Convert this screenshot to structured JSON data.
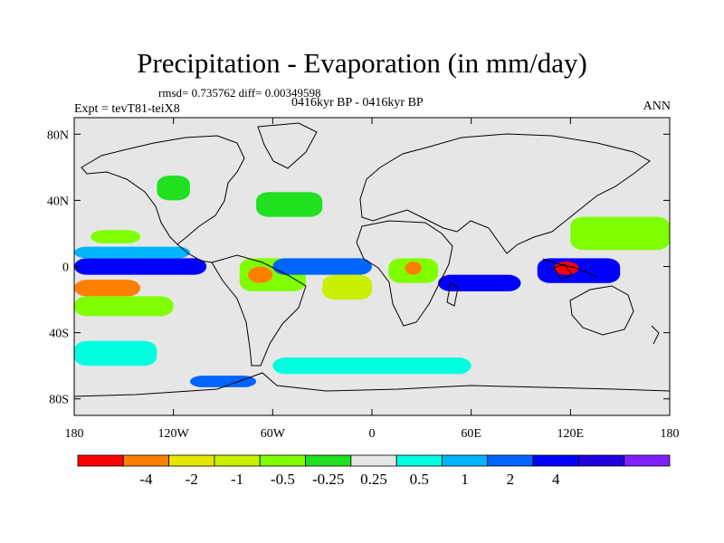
{
  "header": {
    "title": "Precipitation - Evaporation (in mm/day)",
    "stats": "rmsd= 0.735762 diff= 0.00349598",
    "period": "0416kyr BP - 0416kyr BP",
    "experiment": "Expt = tevT81-teiX8",
    "season": "ANN"
  },
  "chart_data": {
    "type": "heatmap",
    "title": "Precipitation - Evaporation (in mm/day)",
    "subtitle": "0416kyr BP - 0416kyr BP",
    "x_ticks": [
      {
        "value": -180,
        "label": "180"
      },
      {
        "value": -120,
        "label": "120W"
      },
      {
        "value": -60,
        "label": "60W"
      },
      {
        "value": 0,
        "label": "0"
      },
      {
        "value": 60,
        "label": "60E"
      },
      {
        "value": 120,
        "label": "120E"
      },
      {
        "value": 180,
        "label": "180"
      }
    ],
    "y_ticks": [
      {
        "value": 80,
        "label": "80N"
      },
      {
        "value": 40,
        "label": "40N"
      },
      {
        "value": 0,
        "label": "0"
      },
      {
        "value": -40,
        "label": "40S"
      },
      {
        "value": -80,
        "label": "80S"
      }
    ],
    "xlim": [
      -180,
      180
    ],
    "ylim": [
      -90,
      90
    ],
    "background_color": "#e6e6e6",
    "colorbar": {
      "colors": [
        "#ff0000",
        "#ff8000",
        "#e6e600",
        "#c8f000",
        "#80ff00",
        "#20e020",
        "#e6e6e6",
        "#00ffe0",
        "#00b4ff",
        "#0064ff",
        "#0000ff",
        "#2000e0",
        "#8020ff"
      ],
      "levels": [
        "-4",
        "-2",
        "-1",
        "-0.5",
        "-0.25",
        "0.25",
        "0.5",
        "1",
        "2",
        "4"
      ]
    },
    "regions": [
      {
        "lon": [
          -180,
          -100
        ],
        "lat": [
          -5,
          5
        ],
        "level": 10
      },
      {
        "lon": [
          -180,
          -110
        ],
        "lat": [
          5,
          12
        ],
        "level": 8
      },
      {
        "lon": [
          -170,
          -140
        ],
        "lat": [
          14,
          22
        ],
        "level": 4
      },
      {
        "lon": [
          -180,
          -140
        ],
        "lat": [
          -18,
          -8
        ],
        "level": 1
      },
      {
        "lon": [
          -180,
          -120
        ],
        "lat": [
          -30,
          -18
        ],
        "level": 4
      },
      {
        "lon": [
          -180,
          -130
        ],
        "lat": [
          -60,
          -45
        ],
        "level": 7
      },
      {
        "lon": [
          -80,
          -40
        ],
        "lat": [
          -15,
          5
        ],
        "level": 4
      },
      {
        "lon": [
          -75,
          -60
        ],
        "lat": [
          -10,
          0
        ],
        "level": 1
      },
      {
        "lon": [
          -130,
          -110
        ],
        "lat": [
          40,
          55
        ],
        "level": 5
      },
      {
        "lon": [
          -70,
          -30
        ],
        "lat": [
          30,
          45
        ],
        "level": 5
      },
      {
        "lon": [
          -60,
          0
        ],
        "lat": [
          -5,
          5
        ],
        "level": 9
      },
      {
        "lon": [
          -30,
          0
        ],
        "lat": [
          -20,
          -5
        ],
        "level": 3
      },
      {
        "lon": [
          10,
          40
        ],
        "lat": [
          -10,
          5
        ],
        "level": 4
      },
      {
        "lon": [
          20,
          30
        ],
        "lat": [
          -5,
          3
        ],
        "level": 1
      },
      {
        "lon": [
          40,
          90
        ],
        "lat": [
          -15,
          -5
        ],
        "level": 10
      },
      {
        "lon": [
          100,
          150
        ],
        "lat": [
          -10,
          5
        ],
        "level": 10
      },
      {
        "lon": [
          110,
          125
        ],
        "lat": [
          -5,
          3
        ],
        "level": 0
      },
      {
        "lon": [
          120,
          180
        ],
        "lat": [
          10,
          30
        ],
        "level": 4
      },
      {
        "lon": [
          -60,
          60
        ],
        "lat": [
          -65,
          -55
        ],
        "level": 7
      },
      {
        "lon": [
          -110,
          -70
        ],
        "lat": [
          -73,
          -66
        ],
        "level": 9
      }
    ]
  }
}
